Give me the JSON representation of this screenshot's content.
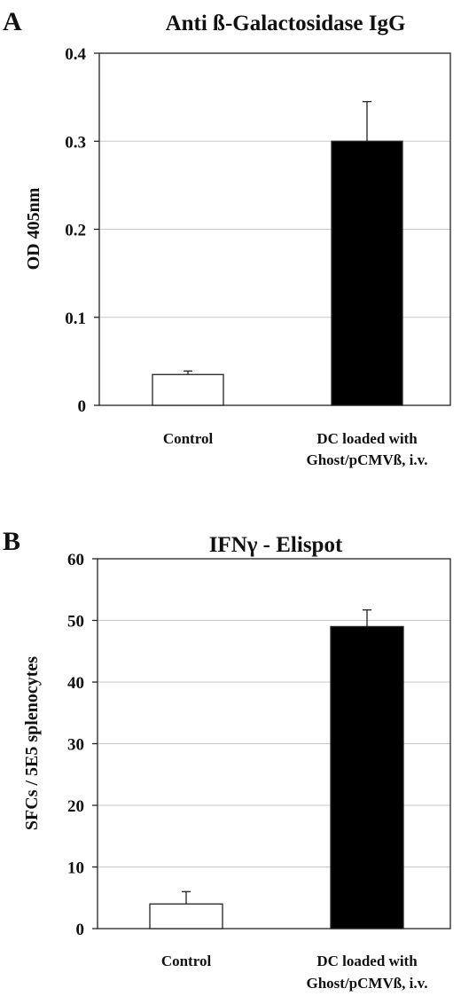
{
  "chart_data": [
    {
      "type": "bar",
      "panel": "A",
      "title": "Anti ß-Galactosidase IgG",
      "xlabel": "",
      "ylabel": "OD 405nm",
      "ylim": [
        0,
        0.4
      ],
      "yticks": [
        "0",
        "0.1",
        "0.2",
        "0.3",
        "0.4"
      ],
      "ytick_values": [
        0,
        0.1,
        0.2,
        0.3,
        0.4
      ],
      "categories": [
        [
          "Control"
        ],
        [
          "DC loaded with",
          "Ghost/pCMVß, i.v."
        ]
      ],
      "values": [
        0.035,
        0.3
      ],
      "errors": [
        0.004,
        0.045
      ],
      "colors": [
        "#ffffff",
        "#000000"
      ],
      "grid": true
    },
    {
      "type": "bar",
      "panel": "B",
      "title": "IFNγ - Elispot",
      "xlabel": "",
      "ylabel": "SFCs / 5E5 splenocytes",
      "ylim": [
        0,
        60
      ],
      "yticks": [
        "0",
        "10",
        "20",
        "30",
        "40",
        "50",
        "60"
      ],
      "ytick_values": [
        0,
        10,
        20,
        30,
        40,
        50,
        60
      ],
      "categories": [
        [
          "Control"
        ],
        [
          "DC loaded with",
          "Ghost/pCMVß, i.v."
        ]
      ],
      "values": [
        4,
        49
      ],
      "errors": [
        2,
        2.7
      ],
      "colors": [
        "#ffffff",
        "#000000"
      ],
      "grid": true
    }
  ]
}
